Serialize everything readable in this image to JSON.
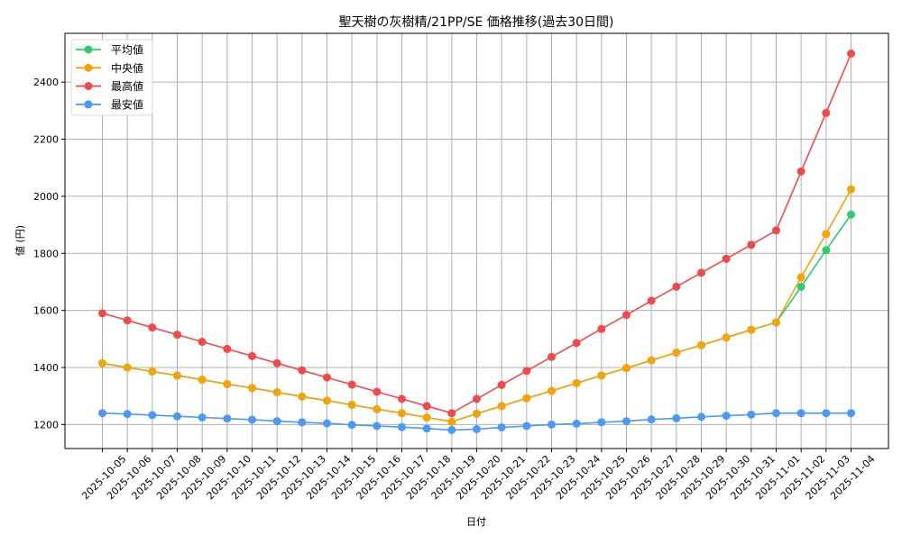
{
  "chart_data": {
    "type": "line",
    "title": "聖天樹の灰樹精/21PP/SE 価格推移(過去30日間)",
    "xlabel": "日付",
    "ylabel": "値 (円)",
    "ylim": [
      1116,
      2571
    ],
    "yticks": [
      1200,
      1400,
      1600,
      1800,
      2000,
      2200,
      2400
    ],
    "grid": true,
    "legend_position": "upper left",
    "x": [
      "2025-10-05",
      "2025-10-06",
      "2025-10-07",
      "2025-10-08",
      "2025-10-09",
      "2025-10-10",
      "2025-10-11",
      "2025-10-12",
      "2025-10-13",
      "2025-10-14",
      "2025-10-15",
      "2025-10-16",
      "2025-10-17",
      "2025-10-18",
      "2025-10-19",
      "2025-10-20",
      "2025-10-21",
      "2025-10-22",
      "2025-10-23",
      "2025-10-24",
      "2025-10-25",
      "2025-10-26",
      "2025-10-27",
      "2025-10-28",
      "2025-10-29",
      "2025-10-30",
      "2025-10-31",
      "2025-11-01",
      "2025-11-02",
      "2025-11-03",
      "2025-11-04"
    ],
    "series": [
      {
        "name": "平均値",
        "color": "#2ecc71",
        "values": [
          1415,
          1400,
          1386,
          1372,
          1357,
          1342,
          1328,
          1313,
          1298,
          1284,
          1269,
          1254,
          1240,
          1225,
          1210,
          1238,
          1265,
          1292,
          1318,
          1345,
          1372,
          1398,
          1425,
          1452,
          1478,
          1505,
          1532,
          1558,
          1683,
          1811,
          1936
        ]
      },
      {
        "name": "中央値",
        "color": "#f5a30a",
        "values": [
          1415,
          1400,
          1386,
          1372,
          1357,
          1342,
          1328,
          1313,
          1298,
          1284,
          1269,
          1254,
          1240,
          1225,
          1210,
          1238,
          1265,
          1292,
          1318,
          1345,
          1372,
          1398,
          1425,
          1452,
          1478,
          1505,
          1532,
          1558,
          1716,
          1868,
          2024
        ]
      },
      {
        "name": "最高値",
        "color": "#f04a4a",
        "values": [
          1590,
          1565,
          1540,
          1515,
          1490,
          1465,
          1440,
          1415,
          1390,
          1365,
          1340,
          1315,
          1290,
          1265,
          1240,
          1290,
          1339,
          1388,
          1437,
          1486,
          1535,
          1584,
          1634,
          1683,
          1732,
          1781,
          1830,
          1880,
          2087,
          2292,
          2500
        ]
      },
      {
        "name": "最安値",
        "color": "#4a9af5",
        "values": [
          1240,
          1237,
          1233,
          1229,
          1225,
          1221,
          1217,
          1212,
          1208,
          1204,
          1199,
          1195,
          1191,
          1186,
          1181,
          1184,
          1190,
          1195,
          1200,
          1203,
          1208,
          1212,
          1218,
          1222,
          1227,
          1231,
          1235,
          1240,
          1240,
          1240,
          1240
        ]
      }
    ]
  }
}
